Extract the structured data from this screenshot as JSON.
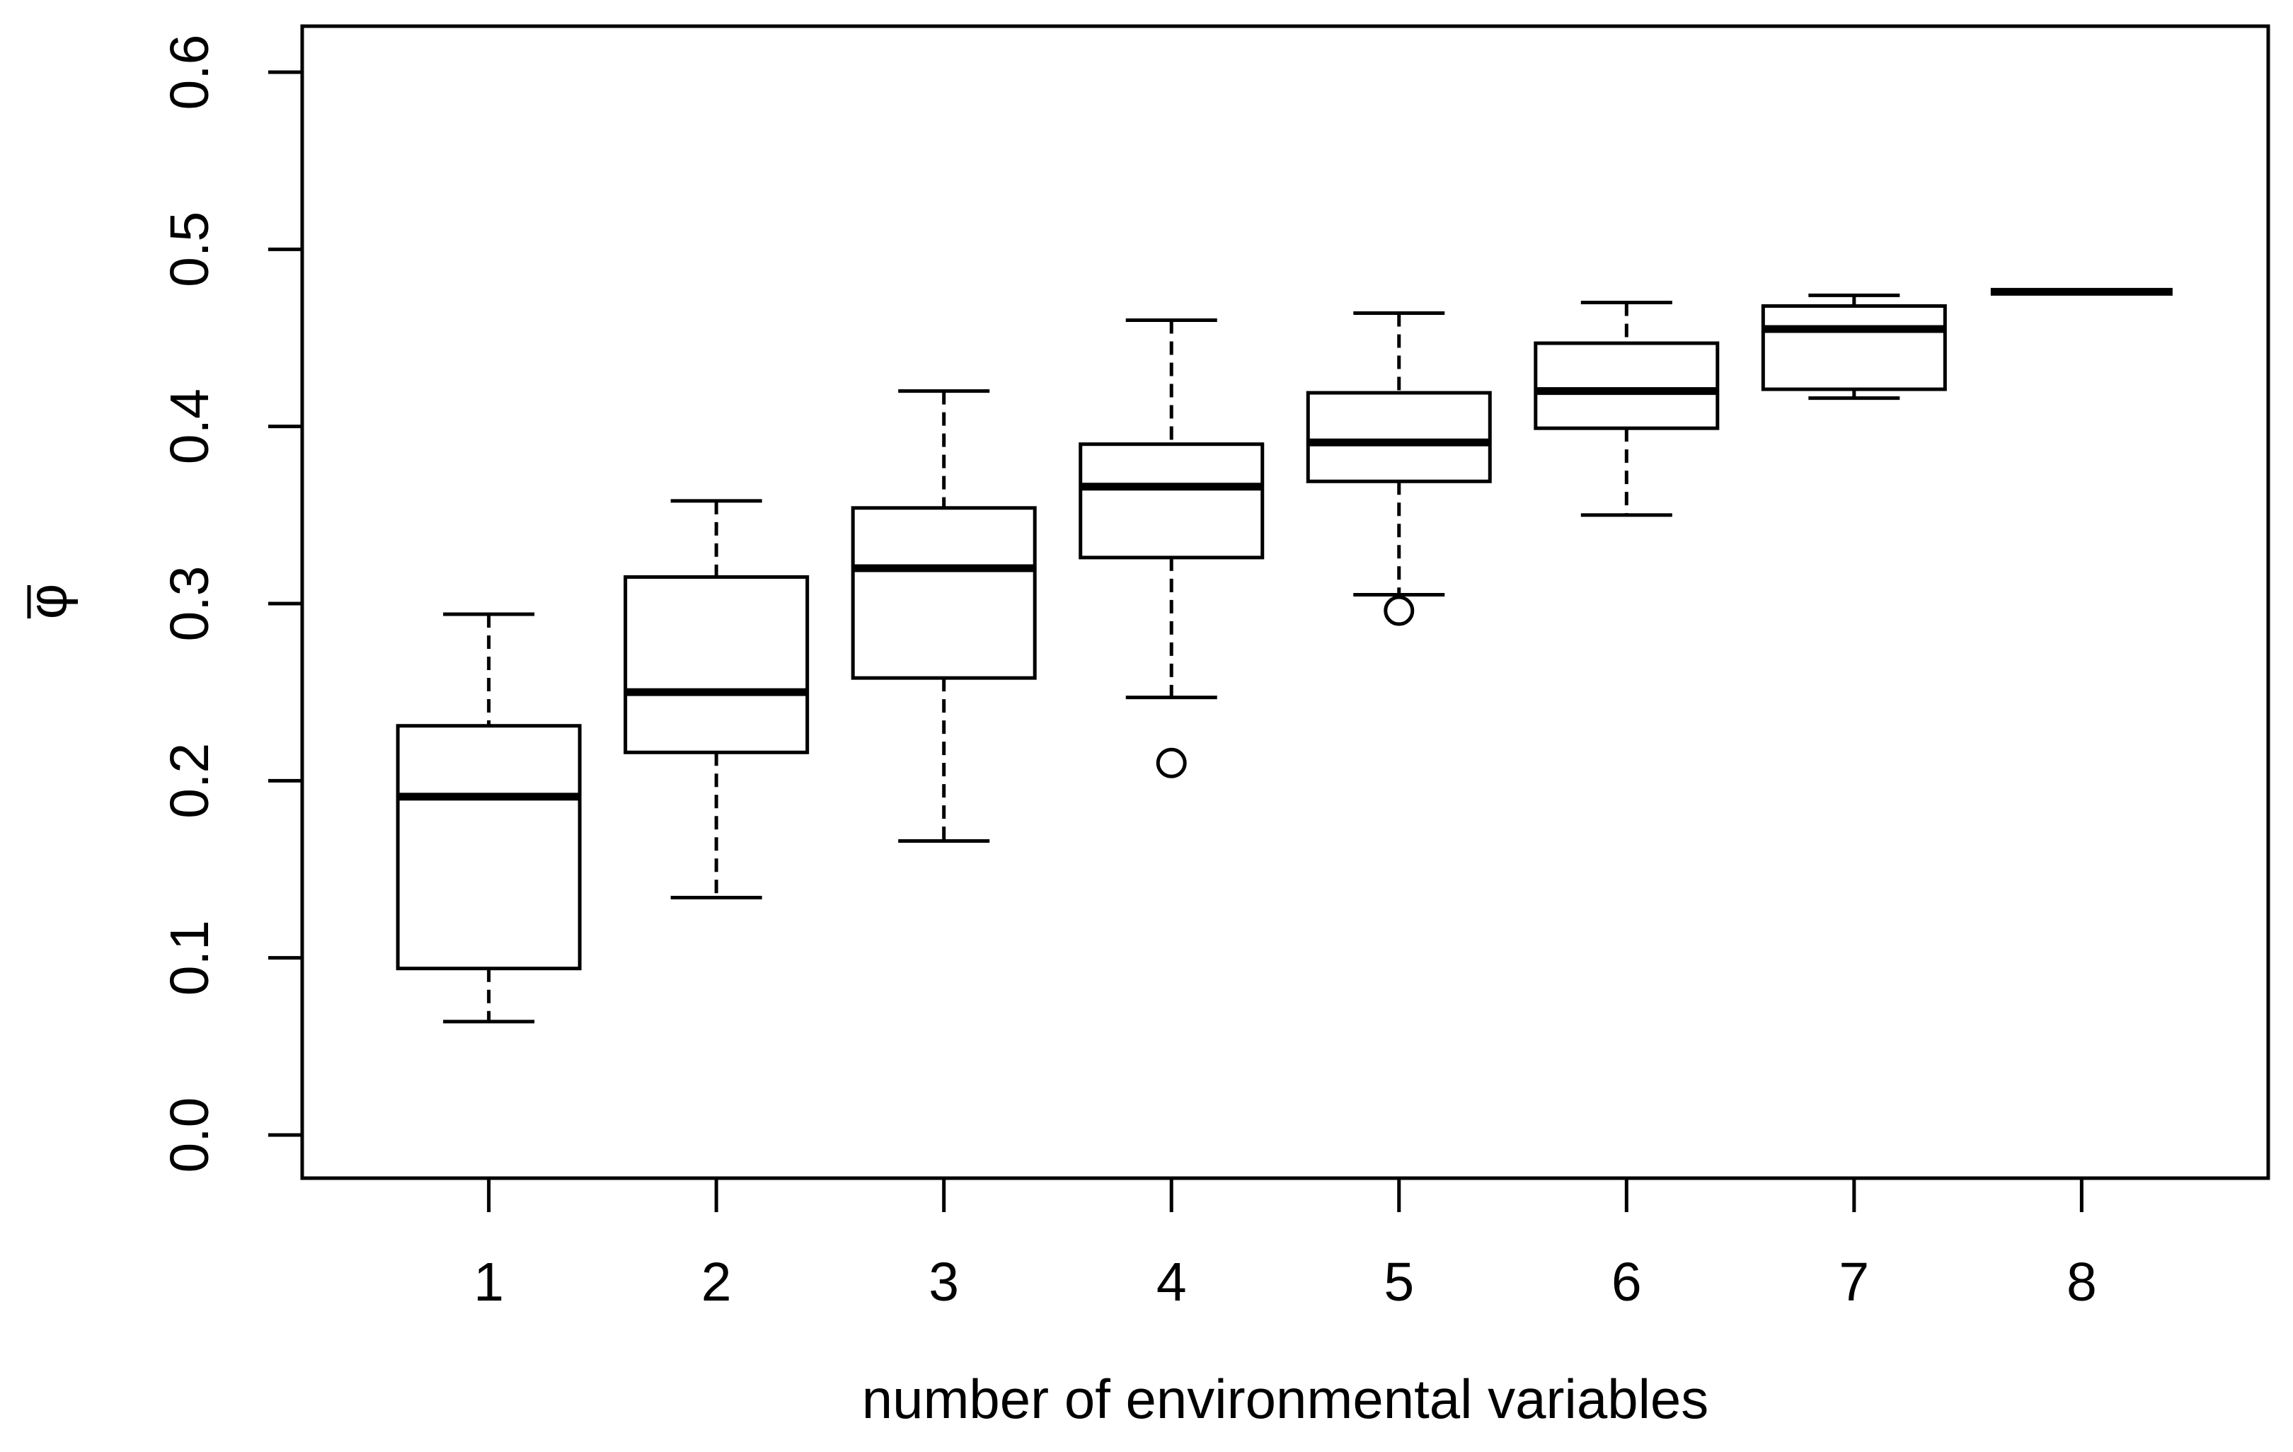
{
  "figure": {
    "background": "#ffffff",
    "foreground": "#000000"
  },
  "chart_data": {
    "type": "boxplot",
    "title": "",
    "xlabel": "number of environmental variables",
    "ylabel": "φ̄",
    "x_categories": [
      "1",
      "2",
      "3",
      "4",
      "5",
      "6",
      "7",
      "8"
    ],
    "y_ticks": [
      "0.0",
      "0.1",
      "0.2",
      "0.3",
      "0.4",
      "0.5",
      "0.6"
    ],
    "ylim": [
      -0.024,
      0.625
    ],
    "xlim": [
      0.18,
      8.82
    ],
    "grid": false,
    "legend": "none",
    "boxes": [
      {
        "category": "1",
        "whisker_low": 0.064,
        "q1": 0.094,
        "median": 0.191,
        "q3": 0.231,
        "whisker_high": 0.294,
        "outliers": []
      },
      {
        "category": "2",
        "whisker_low": 0.134,
        "q1": 0.216,
        "median": 0.25,
        "q3": 0.315,
        "whisker_high": 0.358,
        "outliers": []
      },
      {
        "category": "3",
        "whisker_low": 0.166,
        "q1": 0.258,
        "median": 0.32,
        "q3": 0.354,
        "whisker_high": 0.42,
        "outliers": []
      },
      {
        "category": "4",
        "whisker_low": 0.247,
        "q1": 0.326,
        "median": 0.366,
        "q3": 0.39,
        "whisker_high": 0.46,
        "outliers": [
          0.21
        ]
      },
      {
        "category": "5",
        "whisker_low": 0.305,
        "q1": 0.369,
        "median": 0.391,
        "q3": 0.419,
        "whisker_high": 0.464,
        "outliers": [
          0.296
        ]
      },
      {
        "category": "6",
        "whisker_low": 0.35,
        "q1": 0.399,
        "median": 0.42,
        "q3": 0.447,
        "whisker_high": 0.47,
        "outliers": []
      },
      {
        "category": "7",
        "whisker_low": 0.416,
        "q1": 0.421,
        "median": 0.455,
        "q3": 0.468,
        "whisker_high": 0.474,
        "outliers": []
      },
      {
        "category": "8",
        "whisker_low": 0.476,
        "q1": 0.476,
        "median": 0.476,
        "q3": 0.476,
        "whisker_high": 0.476,
        "outliers": []
      }
    ]
  }
}
